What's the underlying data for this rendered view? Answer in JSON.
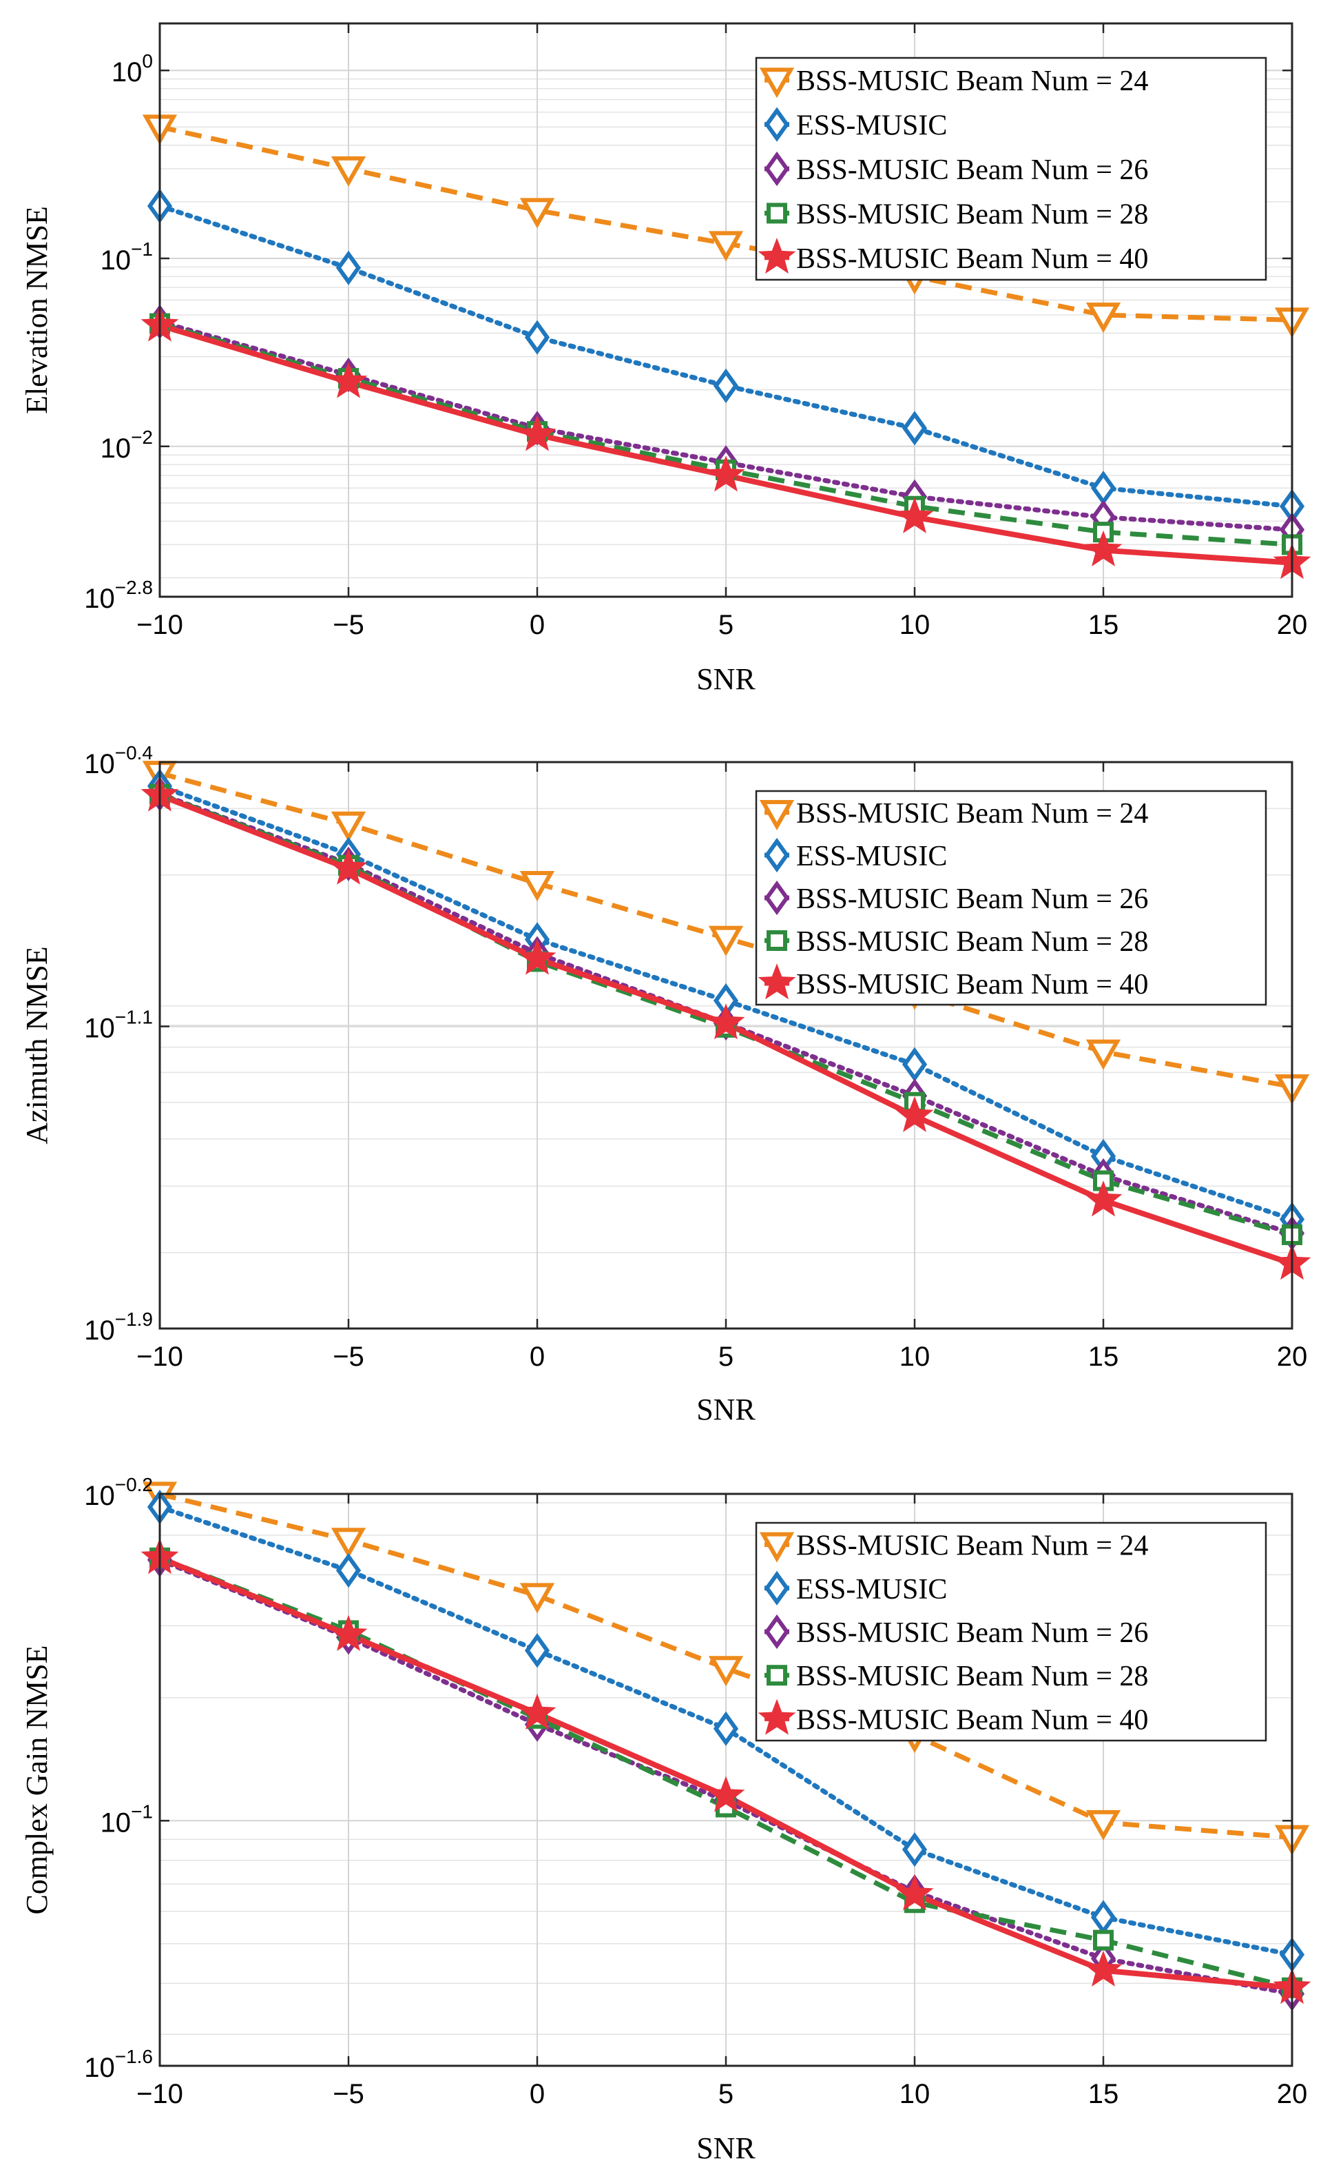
{
  "figure": {
    "series_styles": [
      {
        "name": "BSS-MUSIC Beam Num = 24",
        "color": "#EE8A1B",
        "dash": "dashed",
        "marker": "triangle-down"
      },
      {
        "name": "ESS-MUSIC",
        "color": "#1F77BE",
        "dash": "dotted",
        "marker": "diamond"
      },
      {
        "name": "BSS-MUSIC Beam Num = 26",
        "color": "#7E2F8E",
        "dash": "dotted",
        "marker": "diamond"
      },
      {
        "name": "BSS-MUSIC Beam Num = 28",
        "color": "#2E8B3E",
        "dash": "dashed",
        "marker": "square"
      },
      {
        "name": "BSS-MUSIC Beam Num = 40",
        "color": "#E8303A",
        "dash": "solid",
        "marker": "star"
      }
    ]
  },
  "chart_data": [
    {
      "type": "line",
      "title": "",
      "xlabel": "SNR",
      "ylabel": "Elevation NMSE",
      "yscale": "log",
      "x": [
        -10,
        -5,
        0,
        5,
        10,
        15,
        20
      ],
      "xlim": [
        -10,
        20
      ],
      "ylim_log10": [
        -2.8,
        0.25
      ],
      "xticks": [
        "−10",
        "−5",
        "0",
        "5",
        "10",
        "15",
        "20"
      ],
      "yticks": [
        {
          "log": 0,
          "base": "10",
          "exp": "0"
        },
        {
          "log": -1,
          "base": "10",
          "exp": "−1"
        },
        {
          "log": -2,
          "base": "10",
          "exp": "−2"
        },
        {
          "log": -2.8,
          "base": "10",
          "exp": "−2.8"
        }
      ],
      "legend_position": "top-right",
      "series": [
        {
          "name": "BSS-MUSIC Beam Num = 24",
          "values": [
            0.5,
            0.3,
            0.18,
            0.12,
            0.08,
            0.05,
            0.047
          ]
        },
        {
          "name": "ESS-MUSIC",
          "values": [
            0.19,
            0.089,
            0.038,
            0.021,
            0.0125,
            0.006,
            0.0048
          ]
        },
        {
          "name": "BSS-MUSIC Beam Num = 26",
          "values": [
            0.046,
            0.024,
            0.0125,
            0.0082,
            0.0054,
            0.0042,
            0.0036
          ]
        },
        {
          "name": "BSS-MUSIC Beam Num = 28",
          "values": [
            0.045,
            0.023,
            0.012,
            0.0075,
            0.0048,
            0.0035,
            0.003
          ]
        },
        {
          "name": "BSS-MUSIC Beam Num = 40",
          "values": [
            0.044,
            0.022,
            0.0115,
            0.007,
            0.0042,
            0.0028,
            0.0024
          ]
        }
      ]
    },
    {
      "type": "line",
      "title": "",
      "xlabel": "SNR",
      "ylabel": "Azimuth NMSE",
      "yscale": "log",
      "x": [
        -10,
        -5,
        0,
        5,
        10,
        15,
        20
      ],
      "xlim": [
        -10,
        20
      ],
      "ylim_log10": [
        -1.9,
        -0.4
      ],
      "xticks": [
        "−10",
        "−5",
        "0",
        "5",
        "10",
        "15",
        "20"
      ],
      "yticks": [
        {
          "log": -0.4,
          "base": "10",
          "exp": "−0.4"
        },
        {
          "log": -1.1,
          "base": "10",
          "exp": "−1.1"
        },
        {
          "log": -1.9,
          "base": "10",
          "exp": "−1.9"
        }
      ],
      "legend_position": "top-right",
      "series": [
        {
          "name": "BSS-MUSIC Beam Num = 24",
          "values": [
            0.372,
            0.273,
            0.19,
            0.136,
            0.098,
            0.068,
            0.055
          ]
        },
        {
          "name": "ESS-MUSIC",
          "values": [
            0.344,
            0.227,
            0.135,
            0.093,
            0.063,
            0.036,
            0.0245
          ]
        },
        {
          "name": "BSS-MUSIC Beam Num = 26",
          "values": [
            0.328,
            0.214,
            0.124,
            0.081,
            0.052,
            0.032,
            0.0225
          ]
        },
        {
          "name": "BSS-MUSIC Beam Num = 28",
          "values": [
            0.327,
            0.212,
            0.118,
            0.079,
            0.05,
            0.031,
            0.0223
          ]
        },
        {
          "name": "BSS-MUSIC Beam Num = 40",
          "values": [
            0.325,
            0.208,
            0.12,
            0.081,
            0.046,
            0.0275,
            0.0187
          ]
        }
      ]
    },
    {
      "type": "line",
      "title": "",
      "xlabel": "SNR",
      "ylabel": "Complex Gain NMSE",
      "yscale": "log",
      "x": [
        -10,
        -5,
        0,
        5,
        10,
        15,
        20
      ],
      "xlim": [
        -10,
        20
      ],
      "ylim_log10": [
        -1.6,
        -0.2
      ],
      "xticks": [
        "−10",
        "−5",
        "0",
        "5",
        "10",
        "15",
        "20"
      ],
      "yticks": [
        {
          "log": -0.2,
          "base": "10",
          "exp": "−0.2"
        },
        {
          "log": -1,
          "base": "10",
          "exp": "−1"
        },
        {
          "log": -1.6,
          "base": "10",
          "exp": "−1.6"
        }
      ],
      "legend_position": "top-right",
      "series": [
        {
          "name": "BSS-MUSIC Beam Num = 24",
          "values": [
            0.63,
            0.486,
            0.356,
            0.236,
            0.162,
            0.099,
            0.091
          ]
        },
        {
          "name": "ESS-MUSIC",
          "values": [
            0.586,
            0.41,
            0.261,
            0.168,
            0.085,
            0.058,
            0.047
          ]
        },
        {
          "name": "BSS-MUSIC Beam Num = 26",
          "values": [
            0.435,
            0.281,
            0.172,
            0.112,
            0.067,
            0.046,
            0.0377
          ]
        },
        {
          "name": "BSS-MUSIC Beam Num = 28",
          "values": [
            0.44,
            0.292,
            0.178,
            0.108,
            0.063,
            0.051,
            0.039
          ]
        },
        {
          "name": "BSS-MUSIC Beam Num = 40",
          "values": [
            0.44,
            0.285,
            0.183,
            0.115,
            0.066,
            0.043,
            0.039
          ]
        }
      ]
    }
  ]
}
